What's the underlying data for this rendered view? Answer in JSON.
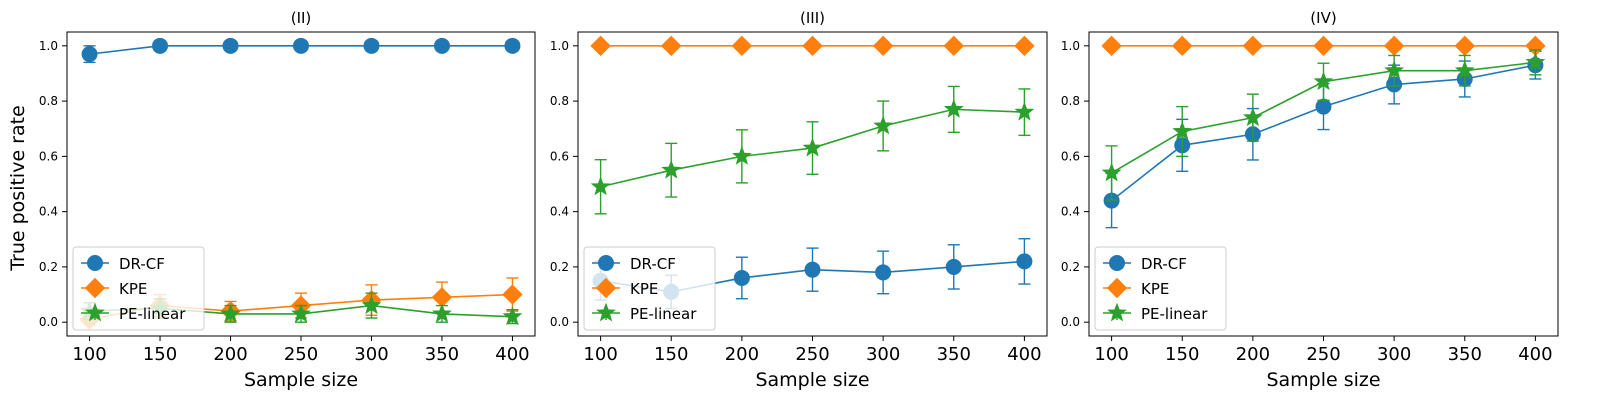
{
  "figure": {
    "ylabel": "True positive rate"
  },
  "chart_data": [
    {
      "type": "line",
      "title": "(II)",
      "xlabel": "Sample size",
      "ylabel": "True positive rate",
      "x": [
        100,
        150,
        200,
        250,
        300,
        350,
        400
      ],
      "xticks": [
        100,
        150,
        200,
        250,
        300,
        350,
        400
      ],
      "yticks": [
        0.0,
        0.2,
        0.4,
        0.6,
        0.8,
        1.0
      ],
      "xlim": [
        84,
        416
      ],
      "ylim": [
        -0.05,
        1.05
      ],
      "grid": false,
      "legend_position": "lower-left",
      "series": [
        {
          "name": "DR-CF",
          "color": "#1f77b4",
          "marker": "circle",
          "values": [
            0.97,
            1.0,
            1.0,
            1.0,
            1.0,
            1.0,
            1.0
          ],
          "errors": [
            0.03,
            0,
            0,
            0,
            0,
            0,
            0
          ]
        },
        {
          "name": "KPE",
          "color": "#ff7f0e",
          "marker": "diamond",
          "values": [
            0.01,
            0.06,
            0.04,
            0.06,
            0.08,
            0.09,
            0.1
          ],
          "errors": [
            0.02,
            0.04,
            0.035,
            0.045,
            0.055,
            0.055,
            0.06
          ]
        },
        {
          "name": "PE-linear",
          "color": "#2ca02c",
          "marker": "star",
          "values": [
            0.04,
            0.05,
            0.03,
            0.03,
            0.06,
            0.03,
            0.02
          ],
          "errors": [
            0.03,
            0.035,
            0.03,
            0.03,
            0.045,
            0.03,
            0.025
          ]
        }
      ]
    },
    {
      "type": "line",
      "title": "(III)",
      "xlabel": "Sample size",
      "ylabel": "",
      "x": [
        100,
        150,
        200,
        250,
        300,
        350,
        400
      ],
      "xticks": [
        100,
        150,
        200,
        250,
        300,
        350,
        400
      ],
      "yticks": [
        0.0,
        0.2,
        0.4,
        0.6,
        0.8,
        1.0
      ],
      "xlim": [
        84,
        416
      ],
      "ylim": [
        -0.05,
        1.05
      ],
      "grid": false,
      "legend_position": "lower-left",
      "series": [
        {
          "name": "DR-CF",
          "color": "#1f77b4",
          "marker": "circle",
          "values": [
            0.15,
            0.11,
            0.16,
            0.19,
            0.18,
            0.2,
            0.22
          ],
          "errors": [
            0.07,
            0.06,
            0.075,
            0.078,
            0.077,
            0.08,
            0.082
          ]
        },
        {
          "name": "KPE",
          "color": "#ff7f0e",
          "marker": "diamond",
          "values": [
            1.0,
            1.0,
            1.0,
            1.0,
            1.0,
            1.0,
            1.0
          ],
          "errors": [
            0,
            0,
            0,
            0,
            0,
            0,
            0
          ]
        },
        {
          "name": "PE-linear",
          "color": "#2ca02c",
          "marker": "star",
          "values": [
            0.49,
            0.55,
            0.6,
            0.63,
            0.71,
            0.77,
            0.76
          ],
          "errors": [
            0.098,
            0.097,
            0.096,
            0.095,
            0.09,
            0.083,
            0.084
          ]
        }
      ]
    },
    {
      "type": "line",
      "title": "(IV)",
      "xlabel": "Sample size",
      "ylabel": "",
      "x": [
        100,
        150,
        200,
        250,
        300,
        350,
        400
      ],
      "xticks": [
        100,
        150,
        200,
        250,
        300,
        350,
        400
      ],
      "yticks": [
        0.0,
        0.2,
        0.4,
        0.6,
        0.8,
        1.0
      ],
      "xlim": [
        84,
        416
      ],
      "ylim": [
        -0.05,
        1.05
      ],
      "grid": false,
      "legend_position": "lower-left",
      "series": [
        {
          "name": "DR-CF",
          "color": "#1f77b4",
          "marker": "circle",
          "values": [
            0.44,
            0.64,
            0.68,
            0.78,
            0.86,
            0.88,
            0.93
          ],
          "errors": [
            0.098,
            0.094,
            0.093,
            0.083,
            0.07,
            0.065,
            0.05
          ]
        },
        {
          "name": "KPE",
          "color": "#ff7f0e",
          "marker": "diamond",
          "values": [
            1.0,
            1.0,
            1.0,
            1.0,
            1.0,
            1.0,
            1.0
          ],
          "errors": [
            0,
            0,
            0,
            0,
            0,
            0,
            0
          ]
        },
        {
          "name": "PE-linear",
          "color": "#2ca02c",
          "marker": "star",
          "values": [
            0.54,
            0.69,
            0.74,
            0.87,
            0.91,
            0.91,
            0.94
          ],
          "errors": [
            0.098,
            0.09,
            0.085,
            0.067,
            0.055,
            0.055,
            0.045
          ]
        }
      ]
    }
  ]
}
